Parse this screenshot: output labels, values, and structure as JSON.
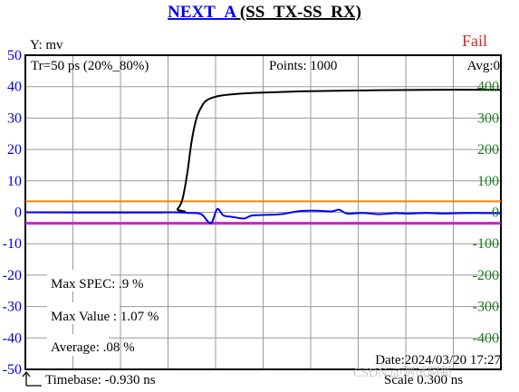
{
  "header": {
    "title_link": "NEXT_A",
    "title_rest": " (SS_TX-SS_RX)"
  },
  "status": {
    "result": "Fail",
    "avg": "Avg:0",
    "points": "Points: 1000",
    "rise_time": "Tr=50  ps (20%_80%)",
    "date": "Date:2024/03/20 17:27",
    "timebase": "Timebase: -0.930  ns",
    "scale": "Scale   0.300 ns",
    "watermark": "CSDN @测试阿新"
  },
  "measurements": [
    {
      "label": "Max SPEC",
      "value": ".9 %"
    },
    {
      "label": "Max Value",
      "value": "1.07 %"
    },
    {
      "label": "Average",
      "value": ".08 %"
    }
  ],
  "colors": {
    "left_axis": "#0000dd",
    "right_axis": "#1a7a1a",
    "fail": "#dd2222",
    "step_trace": "#000000",
    "xtalk_trace": "#0000ff",
    "upper_limit": "#ee8800",
    "lower_limit": "#cc22cc",
    "grid": "#9a9a9a"
  },
  "chart_data": {
    "type": "line",
    "ylabel": "Y: mv",
    "ylim": [
      -50,
      50
    ],
    "yticks": [
      50,
      40,
      30,
      20,
      10,
      0,
      -10,
      -20,
      -30,
      -40,
      -50
    ],
    "y2lim": [
      -500,
      500
    ],
    "y2ticks": [
      400,
      300,
      200,
      100,
      0,
      -100,
      -200,
      -300,
      -400
    ],
    "xlim": [
      -0.93,
      2.07
    ],
    "x_grid_step": 0.3,
    "grid": true,
    "series": [
      {
        "axis": "right",
        "x": [
          -0.93,
          0.0,
          0.03,
          0.06,
          0.09,
          0.12,
          0.15,
          0.18,
          0.21,
          0.27,
          0.36,
          0.51,
          0.81,
          1.2,
          1.6,
          2.07
        ],
        "values": [
          0,
          0,
          10,
          40,
          120,
          230,
          300,
          335,
          355,
          368,
          375,
          380,
          385,
          388,
          390,
          390
        ]
      },
      {
        "axis": "left",
        "x": [
          -0.93,
          -0.2,
          0.0,
          0.1,
          0.18,
          0.24,
          0.28,
          0.32,
          0.38,
          0.45,
          0.5,
          0.6,
          0.7,
          0.8,
          0.9,
          1.0,
          1.05,
          1.1,
          1.2,
          1.3,
          1.4,
          1.5,
          1.6,
          1.7,
          1.8,
          1.9,
          2.07
        ],
        "values": [
          0,
          0,
          0,
          -0.2,
          -0.6,
          -3.5,
          1.0,
          -1.0,
          -1.5,
          -2.0,
          -1.0,
          -0.8,
          -0.5,
          0.4,
          0.5,
          0.3,
          0.8,
          -0.4,
          -0.2,
          -0.6,
          -0.3,
          -0.4,
          -0.2,
          -0.4,
          -0.3,
          -0.2,
          -0.3
        ]
      },
      {
        "axis": "left",
        "x": [
          -0.93,
          2.07
        ],
        "values": [
          3.5,
          3.5
        ]
      },
      {
        "axis": "left",
        "x": [
          -0.93,
          2.07
        ],
        "values": [
          -3.5,
          -3.5
        ]
      }
    ]
  }
}
